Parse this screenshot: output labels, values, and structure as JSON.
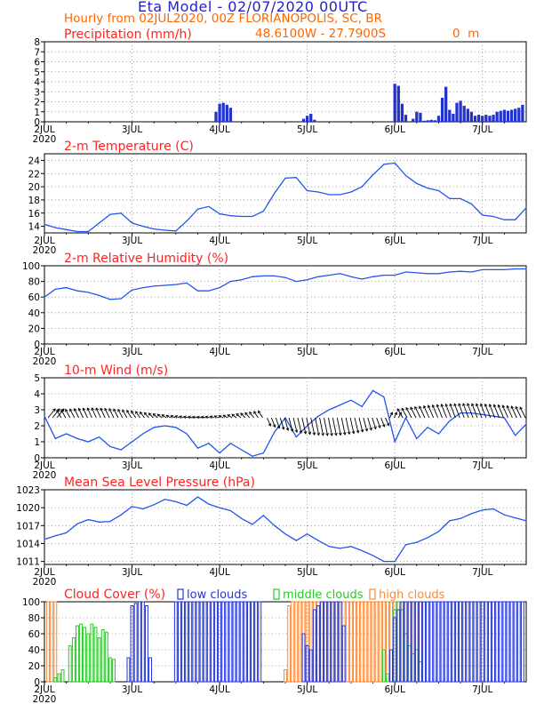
{
  "header": {
    "title": "Eta Model - 02/07/2020 00UTC",
    "subtitle": "Hourly from 02JUL2020, 00Z  FLORIANOPOLIS, SC, BR",
    "coords": "48.6100W - 27.7900S",
    "elevation": "0  m",
    "title_color": "#2222cc",
    "subtitle_color": "#ff6600",
    "panel_title_color": "#ff2222"
  },
  "x_axis": {
    "range_hours": [
      0,
      132
    ],
    "ticks": [
      {
        "hour": 0,
        "label": "2JUL",
        "sublabel": "2020"
      },
      {
        "hour": 24,
        "label": "3JUL"
      },
      {
        "hour": 48,
        "label": "4JUL"
      },
      {
        "hour": 72,
        "label": "5JUL"
      },
      {
        "hour": 96,
        "label": "6JUL"
      },
      {
        "hour": 120,
        "label": "7JUL"
      }
    ]
  },
  "chart_data": [
    {
      "type": "bar",
      "title": "Precipitation (mm/h)",
      "ylim": [
        0,
        8
      ],
      "yticks": [
        0,
        1,
        2,
        3,
        4,
        5,
        6,
        7,
        8
      ],
      "color": "#2233cc",
      "x": [
        47,
        48,
        49,
        50,
        51,
        71,
        72,
        73,
        74,
        96,
        97,
        98,
        99,
        101,
        102,
        103,
        104,
        105,
        106,
        107,
        108,
        109,
        110,
        111,
        112,
        113,
        114,
        115,
        116,
        117,
        118,
        119,
        120,
        121,
        122,
        123,
        124,
        125,
        126,
        127,
        128,
        129,
        130,
        131
      ],
      "values": [
        1.0,
        1.8,
        1.9,
        1.7,
        1.4,
        0.3,
        0.6,
        0.8,
        0.2,
        3.8,
        3.6,
        1.8,
        0.7,
        0.3,
        1.0,
        0.9,
        0.1,
        0.15,
        0.2,
        0.15,
        0.6,
        2.4,
        3.5,
        1.2,
        0.8,
        1.9,
        2.1,
        1.6,
        1.3,
        1.0,
        0.6,
        0.7,
        0.6,
        0.7,
        0.6,
        0.7,
        1.0,
        1.1,
        1.2,
        1.1,
        1.2,
        1.3,
        1.4,
        1.7
      ]
    },
    {
      "type": "line",
      "title": "2-m Temperature (C)",
      "ylim": [
        13,
        25
      ],
      "yticks": [
        14,
        16,
        18,
        20,
        22,
        24
      ],
      "color": "#2255ee",
      "x": [
        0,
        3,
        6,
        9,
        12,
        15,
        18,
        21,
        24,
        27,
        30,
        33,
        36,
        39,
        42,
        45,
        48,
        51,
        54,
        57,
        60,
        63,
        66,
        69,
        72,
        75,
        78,
        81,
        84,
        87,
        90,
        93,
        96,
        99,
        102,
        105,
        108,
        111,
        114,
        117,
        120,
        123,
        126,
        129,
        132
      ],
      "values": [
        14.3,
        13.8,
        13.5,
        13.2,
        13.2,
        14.5,
        15.8,
        16.0,
        14.5,
        14.0,
        13.6,
        13.4,
        13.3,
        14.8,
        16.6,
        17.0,
        15.9,
        15.6,
        15.5,
        15.5,
        16.3,
        19.0,
        21.3,
        21.4,
        19.4,
        19.2,
        18.8,
        18.8,
        19.2,
        20.0,
        21.8,
        23.4,
        23.6,
        21.7,
        20.5,
        19.8,
        19.4,
        18.2,
        18.2,
        17.4,
        15.7,
        15.5,
        15.0,
        15.0,
        16.8
      ]
    },
    {
      "type": "line",
      "title": "2-m Relative Humidity (%)",
      "ylim": [
        0,
        100
      ],
      "yticks": [
        0,
        20,
        40,
        60,
        80,
        100
      ],
      "color": "#2255ee",
      "x": [
        0,
        3,
        6,
        9,
        12,
        15,
        18,
        21,
        24,
        27,
        30,
        33,
        36,
        39,
        42,
        45,
        48,
        51,
        54,
        57,
        60,
        63,
        66,
        69,
        72,
        75,
        78,
        81,
        84,
        87,
        90,
        93,
        96,
        99,
        102,
        105,
        108,
        111,
        114,
        117,
        120,
        123,
        126,
        129,
        132
      ],
      "values": [
        60,
        70,
        72,
        68,
        66,
        62,
        57,
        58,
        69,
        72,
        74,
        75,
        76,
        78,
        68,
        68,
        72,
        80,
        82,
        86,
        87,
        87,
        85,
        80,
        82,
        86,
        88,
        90,
        86,
        83,
        86,
        88,
        88,
        92,
        91,
        90,
        90,
        92,
        93,
        92,
        95,
        95,
        95,
        96,
        96
      ]
    },
    {
      "type": "line",
      "title": "10-m Wind (m/s)",
      "ylim": [
        0,
        5
      ],
      "yticks": [
        0,
        1,
        2,
        3,
        4,
        5
      ],
      "color": "#2255ee",
      "wind_arrows": true,
      "x": [
        0,
        3,
        6,
        9,
        12,
        15,
        18,
        21,
        24,
        27,
        30,
        33,
        36,
        39,
        42,
        45,
        48,
        51,
        54,
        57,
        60,
        63,
        66,
        69,
        72,
        75,
        78,
        81,
        84,
        87,
        90,
        93,
        96,
        99,
        102,
        105,
        108,
        111,
        114,
        117,
        120,
        123,
        126,
        129,
        132
      ],
      "values": [
        2.6,
        1.2,
        1.5,
        1.2,
        1.0,
        1.3,
        0.7,
        0.5,
        1.0,
        1.5,
        1.9,
        2.0,
        1.9,
        1.5,
        0.6,
        0.9,
        0.3,
        0.9,
        0.5,
        0.1,
        0.3,
        1.6,
        2.5,
        1.3,
        2.0,
        2.6,
        3.0,
        3.3,
        3.6,
        3.2,
        4.2,
        3.8,
        1.0,
        2.5,
        1.2,
        1.9,
        1.5,
        2.3,
        2.8,
        2.8,
        2.7,
        2.6,
        2.5,
        1.4,
        2.1
      ]
    },
    {
      "type": "line",
      "title": "Mean Sea Level Pressure (hPa)",
      "ylim": [
        1010.5,
        1023
      ],
      "yticks": [
        1011,
        1014,
        1017,
        1020,
        1023
      ],
      "color": "#2255ee",
      "x": [
        0,
        3,
        6,
        9,
        12,
        15,
        18,
        21,
        24,
        27,
        30,
        33,
        36,
        39,
        42,
        45,
        48,
        51,
        54,
        57,
        60,
        63,
        66,
        69,
        72,
        75,
        78,
        81,
        84,
        87,
        90,
        93,
        96,
        99,
        102,
        105,
        108,
        111,
        114,
        117,
        120,
        123,
        126,
        129,
        132
      ],
      "values": [
        1014.7,
        1015.3,
        1015.8,
        1017.3,
        1018.0,
        1017.6,
        1017.7,
        1018.8,
        1020.2,
        1019.8,
        1020.5,
        1021.4,
        1021.0,
        1020.4,
        1021.8,
        1020.6,
        1020.0,
        1019.5,
        1018.2,
        1017.2,
        1018.7,
        1017.0,
        1015.6,
        1014.5,
        1015.6,
        1014.5,
        1013.5,
        1013.2,
        1013.5,
        1012.8,
        1012.0,
        1011.0,
        1011.0,
        1013.8,
        1014.2,
        1015.0,
        1016.0,
        1017.8,
        1018.2,
        1019.0,
        1019.6,
        1019.8,
        1018.8,
        1018.3,
        1017.8
      ]
    },
    {
      "type": "bar",
      "title": "Cloud Cover (%)",
      "ylim": [
        0,
        100
      ],
      "yticks": [
        0,
        20,
        40,
        60,
        80,
        100
      ],
      "legend": [
        "low clouds",
        "middle clouds",
        "high clouds"
      ],
      "series": [
        {
          "name": "low clouds",
          "color": "#2233dd",
          "x": [
            23,
            24,
            25,
            26,
            27,
            28,
            29,
            36,
            37,
            38,
            39,
            40,
            41,
            42,
            43,
            44,
            45,
            46,
            47,
            48,
            49,
            50,
            51,
            52,
            53,
            54,
            55,
            56,
            57,
            58,
            59,
            71,
            72,
            73,
            74,
            75,
            76,
            77,
            78,
            79,
            80,
            81,
            82,
            95,
            96,
            97,
            98,
            99,
            100,
            101,
            102,
            103,
            104,
            105,
            106,
            107,
            108,
            109,
            110,
            111,
            112,
            113,
            114,
            115,
            116,
            117,
            118,
            119,
            120,
            121,
            122,
            123,
            124,
            125,
            126,
            127,
            128,
            129,
            130,
            131
          ],
          "values": [
            30,
            95,
            98,
            100,
            100,
            95,
            30,
            100,
            100,
            100,
            100,
            100,
            100,
            100,
            100,
            100,
            100,
            100,
            100,
            100,
            100,
            100,
            100,
            100,
            100,
            100,
            100,
            100,
            100,
            100,
            100,
            60,
            45,
            40,
            90,
            95,
            100,
            100,
            100,
            100,
            100,
            100,
            70,
            40,
            80,
            90,
            100,
            100,
            100,
            100,
            100,
            100,
            100,
            100,
            100,
            100,
            100,
            100,
            100,
            100,
            100,
            100,
            100,
            100,
            100,
            100,
            100,
            100,
            100,
            100,
            100,
            100,
            100,
            100,
            100,
            100,
            100,
            100,
            100,
            100
          ]
        },
        {
          "name": "middle clouds",
          "color": "#22cc22",
          "x": [
            3,
            4,
            5,
            7,
            8,
            9,
            10,
            11,
            12,
            13,
            14,
            15,
            16,
            17,
            18,
            19,
            93,
            94,
            96,
            97,
            98,
            99,
            100,
            101,
            102,
            103
          ],
          "values": [
            5,
            10,
            15,
            45,
            55,
            70,
            72,
            68,
            60,
            72,
            68,
            55,
            65,
            62,
            30,
            28,
            40,
            10,
            90,
            100,
            90,
            60,
            45,
            35,
            40,
            25
          ]
        },
        {
          "name": "high clouds",
          "color": "#ff8833",
          "x": [
            1,
            2,
            3,
            66,
            67,
            68,
            69,
            70,
            71,
            72,
            73,
            74,
            75,
            76,
            77,
            78,
            79,
            80,
            81,
            82,
            83,
            84,
            85,
            86,
            87,
            88,
            89,
            90,
            91,
            92,
            93,
            94,
            95,
            96,
            97,
            98,
            99,
            100,
            101,
            102,
            103
          ],
          "values": [
            100,
            100,
            100,
            15,
            95,
            100,
            100,
            100,
            100,
            100,
            100,
            100,
            100,
            100,
            100,
            100,
            100,
            100,
            100,
            100,
            100,
            100,
            100,
            100,
            100,
            100,
            100,
            100,
            100,
            100,
            100,
            100,
            100,
            100,
            100,
            100,
            100,
            100,
            100,
            100,
            100
          ]
        }
      ]
    }
  ]
}
